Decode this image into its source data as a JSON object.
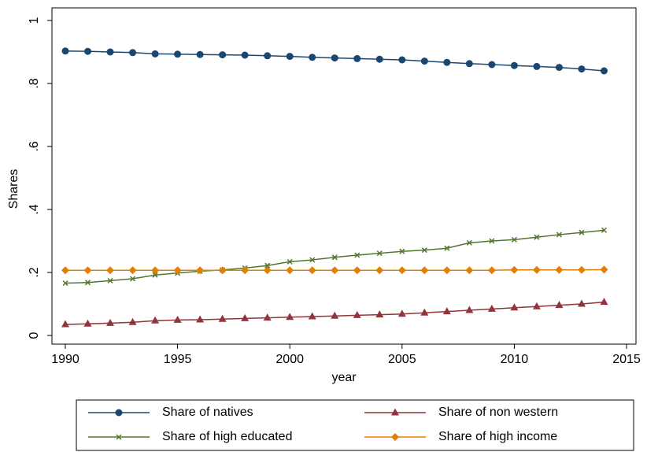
{
  "chart_data": {
    "type": "line",
    "x_label": "year",
    "y_label": "Shares",
    "x": [
      1990,
      1991,
      1992,
      1993,
      1994,
      1995,
      1996,
      1997,
      1998,
      1999,
      2000,
      2001,
      2002,
      2003,
      2004,
      2005,
      2006,
      2007,
      2008,
      2009,
      2010,
      2011,
      2012,
      2013,
      2014
    ],
    "xlim": [
      1990,
      2015
    ],
    "xticks": [
      1990,
      1995,
      2000,
      2005,
      2010,
      2015
    ],
    "ylim": [
      0,
      1
    ],
    "yticks": [
      0,
      {
        "value": 0.2,
        "label": ".2"
      },
      {
        "value": 0.4,
        "label": ".4"
      },
      {
        "value": 0.6,
        "label": ".6"
      },
      {
        "value": 0.8,
        "label": ".8"
      },
      1
    ],
    "grid": false,
    "series": [
      {
        "name": "Share of natives",
        "color": "#1a476f",
        "marker": "circle",
        "values": [
          0.903,
          0.902,
          0.9,
          0.898,
          0.894,
          0.893,
          0.892,
          0.891,
          0.89,
          0.888,
          0.886,
          0.883,
          0.881,
          0.879,
          0.877,
          0.875,
          0.871,
          0.867,
          0.863,
          0.86,
          0.857,
          0.854,
          0.851,
          0.846,
          0.84
        ]
      },
      {
        "name": "Share of non western",
        "color": "#90353b",
        "marker": "triangle",
        "values": [
          0.035,
          0.037,
          0.039,
          0.042,
          0.047,
          0.049,
          0.05,
          0.052,
          0.054,
          0.056,
          0.058,
          0.06,
          0.062,
          0.064,
          0.066,
          0.068,
          0.072,
          0.076,
          0.08,
          0.084,
          0.088,
          0.092,
          0.096,
          0.1,
          0.106
        ]
      },
      {
        "name": "Share of high educated",
        "color": "#55752f",
        "marker": "x",
        "values": [
          0.166,
          0.168,
          0.174,
          0.18,
          0.192,
          0.198,
          0.204,
          0.208,
          0.214,
          0.222,
          0.234,
          0.24,
          0.248,
          0.255,
          0.261,
          0.267,
          0.271,
          0.277,
          0.294,
          0.3,
          0.304,
          0.312,
          0.32,
          0.327,
          0.334
        ]
      },
      {
        "name": "Share of high income",
        "color": "#e37e00",
        "marker": "diamond",
        "values": [
          0.207,
          0.207,
          0.207,
          0.207,
          0.207,
          0.207,
          0.207,
          0.207,
          0.207,
          0.207,
          0.207,
          0.207,
          0.207,
          0.207,
          0.207,
          0.207,
          0.207,
          0.207,
          0.207,
          0.207,
          0.208,
          0.208,
          0.208,
          0.208,
          0.209
        ]
      }
    ]
  }
}
